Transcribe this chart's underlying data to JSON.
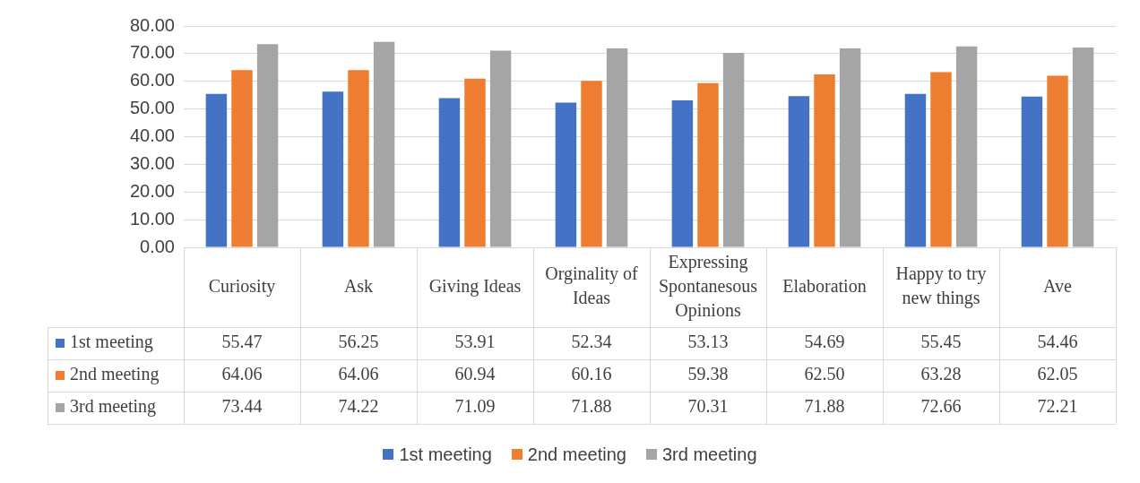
{
  "chart_data": {
    "type": "bar",
    "categories": [
      "Curiosity",
      "Ask",
      "Giving Ideas",
      "Orginality of Ideas",
      "Expressing Spontanesous Opinions",
      "Elaboration",
      "Happy to try new things",
      "Ave"
    ],
    "series": [
      {
        "name": "1st meeting",
        "color": "#4472c4",
        "values": [
          55.47,
          56.25,
          53.91,
          52.34,
          53.13,
          54.69,
          55.45,
          54.46
        ],
        "value_labels": [
          "55.47",
          "56.25",
          "53.91",
          "52.34",
          "53.13",
          "54.69",
          "55.45",
          "54.46"
        ]
      },
      {
        "name": "2nd meeting",
        "color": "#ed7d31",
        "values": [
          64.06,
          64.06,
          60.94,
          60.16,
          59.38,
          62.5,
          63.28,
          62.05
        ],
        "value_labels": [
          "64.06",
          "64.06",
          "60.94",
          "60.16",
          "59.38",
          "62.50",
          "63.28",
          "62.05"
        ]
      },
      {
        "name": "3rd meeting",
        "color": "#a5a5a5",
        "values": [
          73.44,
          74.22,
          71.09,
          71.88,
          70.31,
          71.88,
          72.66,
          72.21
        ],
        "value_labels": [
          "73.44",
          "74.22",
          "71.09",
          "71.88",
          "70.31",
          "71.88",
          "72.66",
          "72.21"
        ]
      }
    ],
    "ylim": [
      0,
      80
    ],
    "yticks": [
      {
        "value": 0,
        "label": "0.00"
      },
      {
        "value": 10,
        "label": "10.00"
      },
      {
        "value": 20,
        "label": "20.00"
      },
      {
        "value": 30,
        "label": "30.00"
      },
      {
        "value": 40,
        "label": "40.00"
      },
      {
        "value": 50,
        "label": "50.00"
      },
      {
        "value": 60,
        "label": "60.00"
      },
      {
        "value": 70,
        "label": "70.00"
      },
      {
        "value": 80,
        "label": "80.00"
      }
    ],
    "grid": "y",
    "legend": "bottom"
  }
}
